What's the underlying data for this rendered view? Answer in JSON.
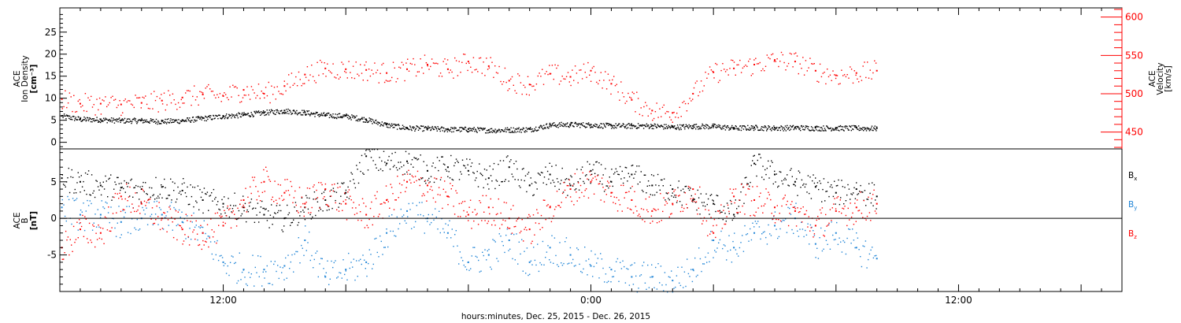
{
  "chart_data": [
    {
      "type": "scatter",
      "panel": "top",
      "ylabel_left": [
        "ACE",
        "Ion Density",
        "[cm⁻³]"
      ],
      "ylabel_right": [
        "ACE",
        "Velocity",
        "[km/s]"
      ],
      "ylim_left": [
        -1.5,
        30.5
      ],
      "ylim_right": [
        428,
        612
      ],
      "yticks_left": [
        0,
        5,
        10,
        15,
        20,
        25
      ],
      "yticks_right": [
        450,
        500,
        550,
        600
      ],
      "x_unit": "hours since Dec. 25, 2015 00:00",
      "xlim": [
        -2.0,
        50.0
      ],
      "series": [
        {
          "name": "Ion Density",
          "axis": "left",
          "color": "#000000",
          "x": [
            -1.9,
            -1.0,
            0.0,
            1.0,
            2.0,
            3.0,
            4.0,
            5.0,
            6.0,
            7.0,
            8.0,
            9.0,
            10.0,
            11.0,
            12.0,
            13.0,
            14.0,
            15.0,
            16.0,
            17.0,
            18.0,
            19.0,
            20.0,
            21.0,
            22.0,
            23.0,
            24.0,
            25.0,
            26.0,
            27.0,
            28.0,
            29.0,
            30.0,
            31.0,
            32.0,
            33.0,
            34.0,
            35.0,
            36.0,
            37.0,
            38.0
          ],
          "y": [
            6.0,
            5.3,
            5.2,
            5.0,
            5.0,
            4.8,
            5.0,
            5.5,
            6.0,
            6.3,
            6.8,
            7.2,
            6.8,
            6.2,
            6.0,
            5.2,
            4.0,
            3.3,
            3.2,
            3.0,
            3.0,
            2.8,
            2.9,
            3.0,
            4.0,
            4.1,
            4.0,
            3.8,
            3.8,
            3.8,
            3.5,
            3.7,
            3.7,
            3.3,
            3.4,
            3.3,
            3.4,
            3.3,
            3.3,
            3.3,
            3.2
          ]
        },
        {
          "name": "Velocity",
          "axis": "right",
          "color": "#ff0000",
          "x": [
            -1.9,
            -1.0,
            0.0,
            1.0,
            2.0,
            3.0,
            4.0,
            5.0,
            6.0,
            7.0,
            8.0,
            9.0,
            10.0,
            11.0,
            12.0,
            13.0,
            14.0,
            15.0,
            16.0,
            17.0,
            18.0,
            19.0,
            20.0,
            21.0,
            22.0,
            23.0,
            24.0,
            25.0,
            26.0,
            27.0,
            28.0,
            29.0,
            30.0,
            31.0,
            32.0,
            33.0,
            34.0,
            35.0,
            36.0,
            37.0,
            38.0
          ],
          "y": [
            493,
            487,
            487,
            486,
            488,
            491,
            495,
            499,
            497,
            505,
            500,
            510,
            525,
            533,
            532,
            531,
            527,
            532,
            538,
            532,
            542,
            536,
            517,
            512,
            526,
            522,
            530,
            513,
            492,
            478,
            475,
            500,
            528,
            533,
            538,
            544,
            542,
            530,
            524,
            527,
            530
          ]
        }
      ]
    },
    {
      "type": "scatter",
      "panel": "bottom",
      "ylabel_left": [
        "ACE",
        "B",
        "[nT]"
      ],
      "ylim": [
        -10,
        9.5
      ],
      "yticks": [
        -5,
        0,
        5
      ],
      "zero_line": true,
      "x_unit": "hours since Dec. 25, 2015 00:00",
      "xlim": [
        -2.0,
        50.0
      ],
      "xlabel": "hours:minutes, Dec. 25, 2015 - Dec. 26, 2015",
      "xticks": [
        6,
        12,
        18,
        24,
        30,
        36,
        42,
        48
      ],
      "xtick_labels": [
        "12:00",
        "0:00",
        "12:00"
      ],
      "xtick_label_hours": [
        6,
        24,
        42
      ],
      "series": [
        {
          "name": "Bx",
          "color": "#000000",
          "x": [
            -1.9,
            -1.0,
            0.0,
            1.0,
            2.0,
            3.0,
            4.0,
            5.0,
            6.0,
            7.0,
            8.0,
            9.0,
            10.0,
            11.0,
            12.0,
            13.0,
            14.0,
            15.0,
            16.0,
            17.0,
            18.0,
            19.0,
            20.0,
            21.0,
            22.0,
            23.0,
            24.0,
            25.0,
            26.0,
            27.0,
            28.0,
            29.0,
            30.0,
            31.0,
            32.0,
            33.0,
            34.0,
            35.0,
            36.0,
            37.0,
            38.0
          ],
          "y": [
            5.5,
            5.0,
            4.5,
            4.2,
            4.0,
            4.3,
            3.8,
            2.5,
            2.0,
            1.5,
            0.5,
            0.0,
            1.5,
            2.5,
            3.5,
            8.5,
            7.5,
            7.8,
            6.5,
            7.0,
            6.5,
            5.5,
            7.0,
            4.5,
            6.0,
            4.5,
            6.5,
            5.0,
            6.0,
            4.5,
            4.0,
            2.5,
            2.0,
            0.5,
            7.5,
            6.0,
            5.0,
            4.3,
            3.5,
            4.0,
            3.0
          ]
        },
        {
          "name": "By",
          "color": "#1f84d6",
          "x": [
            -1.9,
            -1.0,
            0.0,
            1.0,
            2.0,
            3.0,
            4.0,
            5.0,
            6.0,
            7.0,
            8.0,
            9.0,
            10.0,
            11.0,
            12.0,
            13.0,
            14.0,
            15.0,
            16.0,
            17.0,
            18.0,
            19.0,
            20.0,
            21.0,
            22.0,
            23.0,
            24.0,
            25.0,
            26.0,
            27.0,
            28.0,
            29.0,
            30.0,
            31.0,
            32.0,
            33.0,
            34.0,
            35.0,
            36.0,
            37.0,
            38.0
          ],
          "y": [
            1.5,
            0.5,
            0.5,
            -0.5,
            0.0,
            0.5,
            -0.5,
            -2.0,
            -6.0,
            -7.0,
            -7.0,
            -6.5,
            -3.0,
            -8.0,
            -7.0,
            -6.0,
            -2.0,
            1.0,
            0.0,
            -2.0,
            -6.0,
            -5.0,
            -3.0,
            -6.0,
            -4.0,
            -5.0,
            -6.5,
            -7.0,
            -8.0,
            -8.0,
            -8.5,
            -7.0,
            -3.0,
            -4.0,
            -2.0,
            -1.0,
            0.0,
            -3.5,
            -2.0,
            -4.0,
            -5.5
          ]
        },
        {
          "name": "Bz",
          "color": "#ff0000",
          "x": [
            -1.9,
            -1.0,
            0.0,
            1.0,
            2.0,
            3.0,
            4.0,
            5.0,
            6.0,
            7.0,
            8.0,
            9.0,
            10.0,
            11.0,
            12.0,
            13.0,
            14.0,
            15.0,
            16.0,
            17.0,
            18.0,
            19.0,
            20.0,
            21.0,
            22.0,
            23.0,
            24.0,
            25.0,
            26.0,
            27.0,
            28.0,
            29.0,
            30.0,
            31.0,
            32.0,
            33.0,
            34.0,
            35.0,
            36.0,
            37.0,
            38.0
          ],
          "y": [
            -4.0,
            -1.5,
            -2.0,
            3.0,
            2.0,
            0.0,
            -1.5,
            -2.0,
            -1.0,
            2.5,
            5.0,
            3.5,
            2.0,
            4.0,
            2.0,
            0.5,
            2.5,
            5.0,
            4.5,
            3.0,
            0.5,
            1.5,
            0.0,
            -1.5,
            1.5,
            4.0,
            5.0,
            3.5,
            2.5,
            1.0,
            2.0,
            4.0,
            -2.0,
            3.0,
            2.5,
            1.5,
            1.0,
            -1.0,
            1.0,
            1.5,
            2.0
          ]
        }
      ]
    }
  ],
  "legend": {
    "bx_base": "B",
    "bx_sub": "x",
    "by_base": "B",
    "by_sub": "y",
    "bz_base": "B",
    "bz_sub": "z"
  }
}
